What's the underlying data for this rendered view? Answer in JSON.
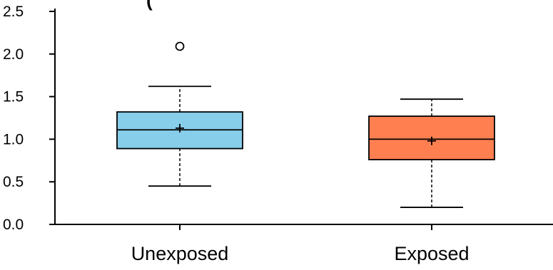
{
  "chart_data": {
    "type": "box",
    "title": "",
    "xlabel": "",
    "ylabel": "",
    "ylim": [
      0.0,
      2.5
    ],
    "y_ticks": [
      "0.0",
      "0.5",
      "1.0",
      "1.5",
      "2.0",
      "2.5"
    ],
    "y_tick_values": [
      0.0,
      0.5,
      1.0,
      1.5,
      2.0,
      2.5
    ],
    "categories": [
      "Unexposed",
      "Exposed"
    ],
    "grid": false,
    "series": [
      {
        "category": "Unexposed",
        "color": "#87ceeb",
        "whisker_low": 0.45,
        "q1": 0.89,
        "median": 1.11,
        "q3": 1.32,
        "whisker_high": 1.62,
        "mean": 1.13,
        "outliers": [
          2.09
        ]
      },
      {
        "category": "Exposed",
        "color": "#ff7f50",
        "whisker_low": 0.2,
        "q1": 0.76,
        "median": 1.0,
        "q3": 1.27,
        "whisker_high": 1.47,
        "mean": 0.98,
        "outliers": []
      }
    ]
  }
}
